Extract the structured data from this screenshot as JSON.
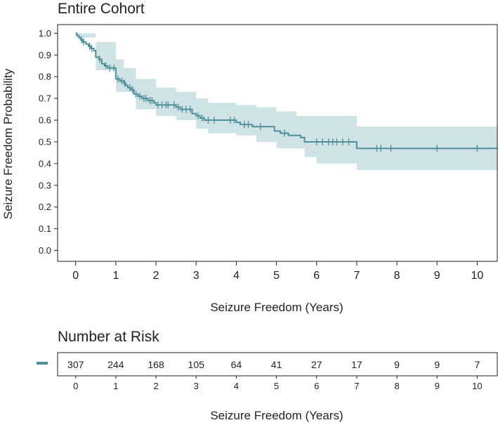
{
  "chart_data": {
    "type": "line",
    "title": "Entire Cohort",
    "xlabel": "Seizure Freedom (Years)",
    "ylabel": "Seizure Freedom Probability",
    "xlim": [
      -0.45,
      10.5
    ],
    "ylim": [
      -0.05,
      1.04
    ],
    "x_ticks": [
      0,
      1,
      2,
      3,
      4,
      5,
      6,
      7,
      8,
      9,
      10
    ],
    "x_tick_labels": [
      "0",
      "1",
      "2",
      "3",
      "4",
      "5",
      "6",
      "7",
      "8",
      "9",
      "10"
    ],
    "y_ticks": [
      0,
      0.1,
      0.2,
      0.3,
      0.4,
      0.5,
      0.6,
      0.7,
      0.8,
      0.9,
      1.0
    ],
    "y_tick_labels": [
      "0.0",
      "0.1",
      "0.2",
      "0.3",
      "0.4",
      "0.5",
      "0.6",
      "0.7",
      "0.8",
      "0.9",
      "1.0"
    ],
    "grid": false,
    "color": "#4e8f99",
    "band_color": "#cfe3e6",
    "series": [
      {
        "name": "Entire Cohort",
        "steps": [
          [
            0,
            1.0
          ],
          [
            0.03,
            0.99
          ],
          [
            0.08,
            0.98
          ],
          [
            0.12,
            0.97
          ],
          [
            0.18,
            0.96
          ],
          [
            0.26,
            0.95
          ],
          [
            0.32,
            0.94
          ],
          [
            0.38,
            0.93
          ],
          [
            0.45,
            0.92
          ],
          [
            0.5,
            0.89
          ],
          [
            0.58,
            0.88
          ],
          [
            0.65,
            0.86
          ],
          [
            0.72,
            0.85
          ],
          [
            0.8,
            0.84
          ],
          [
            1.0,
            0.79
          ],
          [
            1.1,
            0.78
          ],
          [
            1.2,
            0.77
          ],
          [
            1.25,
            0.76
          ],
          [
            1.3,
            0.75
          ],
          [
            1.38,
            0.74
          ],
          [
            1.45,
            0.72
          ],
          [
            1.55,
            0.71
          ],
          [
            1.65,
            0.7
          ],
          [
            1.8,
            0.69
          ],
          [
            1.95,
            0.68
          ],
          [
            2.0,
            0.67
          ],
          [
            2.5,
            0.66
          ],
          [
            2.6,
            0.65
          ],
          [
            2.9,
            0.63
          ],
          [
            3.0,
            0.62
          ],
          [
            3.1,
            0.61
          ],
          [
            3.2,
            0.6
          ],
          [
            4.0,
            0.59
          ],
          [
            4.1,
            0.58
          ],
          [
            4.4,
            0.57
          ],
          [
            4.5,
            0.57
          ],
          [
            4.95,
            0.55
          ],
          [
            5.1,
            0.54
          ],
          [
            5.3,
            0.53
          ],
          [
            5.6,
            0.52
          ],
          [
            5.7,
            0.5
          ],
          [
            6.0,
            0.5
          ],
          [
            7.0,
            0.47
          ],
          [
            10.5,
            0.47
          ]
        ],
        "upper": [
          [
            0,
            1.0
          ],
          [
            0.5,
            0.96
          ],
          [
            1.0,
            0.88
          ],
          [
            1.2,
            0.84
          ],
          [
            1.5,
            0.79
          ],
          [
            2.0,
            0.75
          ],
          [
            2.5,
            0.73
          ],
          [
            3.0,
            0.7
          ],
          [
            3.3,
            0.68
          ],
          [
            4.0,
            0.67
          ],
          [
            4.5,
            0.66
          ],
          [
            5.0,
            0.64
          ],
          [
            5.5,
            0.62
          ],
          [
            6.0,
            0.62
          ],
          [
            7.0,
            0.57
          ],
          [
            10.5,
            0.57
          ]
        ],
        "lower": [
          [
            0,
            0.98
          ],
          [
            0.5,
            0.83
          ],
          [
            1.0,
            0.73
          ],
          [
            1.5,
            0.65
          ],
          [
            2.0,
            0.62
          ],
          [
            2.5,
            0.6
          ],
          [
            3.0,
            0.56
          ],
          [
            3.3,
            0.54
          ],
          [
            4.0,
            0.53
          ],
          [
            4.5,
            0.5
          ],
          [
            5.0,
            0.47
          ],
          [
            5.7,
            0.43
          ],
          [
            6.0,
            0.4
          ],
          [
            7.0,
            0.37
          ],
          [
            10.5,
            0.37
          ]
        ],
        "censor_times": [
          0.15,
          0.2,
          0.35,
          0.4,
          0.6,
          0.75,
          0.85,
          0.95,
          1.05,
          1.15,
          1.22,
          1.35,
          1.42,
          1.5,
          1.6,
          1.7,
          1.75,
          1.85,
          1.9,
          2.05,
          2.15,
          2.25,
          2.3,
          2.45,
          2.55,
          2.65,
          2.75,
          2.85,
          3.05,
          3.15,
          3.3,
          3.45,
          3.85,
          3.95,
          4.2,
          4.3,
          4.6,
          5.2,
          6.0,
          6.15,
          6.3,
          6.4,
          6.5,
          6.65,
          6.8,
          7.5,
          7.6,
          7.85,
          9.0,
          10.0
        ]
      }
    ],
    "risk_table": {
      "title": "Number at Risk",
      "xlabel": "Seizure Freedom (Years)",
      "times": [
        0,
        1,
        2,
        3,
        4,
        5,
        6,
        7,
        8,
        9,
        10
      ],
      "time_labels": [
        "0",
        "1",
        "2",
        "3",
        "4",
        "5",
        "6",
        "7",
        "8",
        "9",
        "10"
      ],
      "counts": [
        "307",
        "244",
        "168",
        "105",
        "64",
        "41",
        "27",
        "17",
        "9",
        "9",
        "7"
      ]
    }
  }
}
